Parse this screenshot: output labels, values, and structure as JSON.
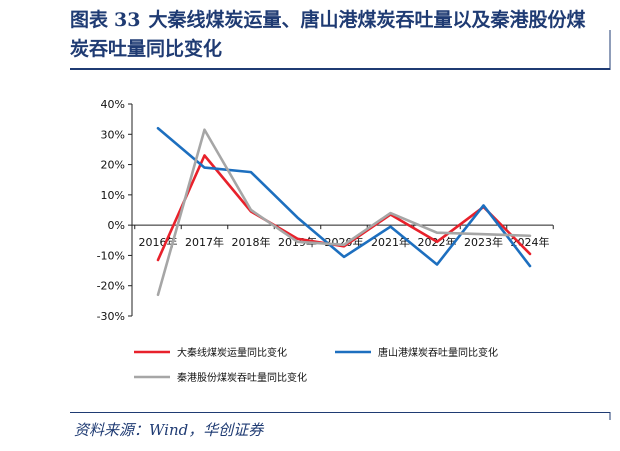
{
  "header": {
    "figure_label": "图表",
    "figure_number": "33",
    "title": "大秦线煤炭运量、唐山港煤炭吞吐量以及秦港股份煤炭吞吐量同比变化"
  },
  "source": "资料来源：Wind，华创证券",
  "chart_data": {
    "type": "line",
    "categories": [
      "2016年",
      "2017年",
      "2018年",
      "2019年",
      "2020年",
      "2021年",
      "2022年",
      "2023年",
      "2024年"
    ],
    "ylim": [
      -30,
      40
    ],
    "yticks": [
      "40%",
      "30%",
      "20%",
      "10%",
      "0%",
      "-10%",
      "-20%",
      "-30%"
    ],
    "ytick_values": [
      40,
      30,
      20,
      10,
      0,
      -10,
      -20,
      -30
    ],
    "grid": false,
    "legend_position": "bottom",
    "series": [
      {
        "name": "大秦线煤炭运量同比变化",
        "color": "#e8212b",
        "values": [
          -11.5,
          23.0,
          4.5,
          -4.5,
          -7.0,
          3.5,
          -5.5,
          6.0,
          -9.5
        ]
      },
      {
        "name": "唐山港煤炭吞吐量同比变化",
        "color": "#1d6fbf",
        "values": [
          32.0,
          19.0,
          17.5,
          2.5,
          -10.5,
          -0.5,
          -13.0,
          6.5,
          -13.5
        ]
      },
      {
        "name": "秦港股份煤炭吞吐量同比变化",
        "color": "#a6a6a6",
        "values": [
          -23.0,
          31.5,
          5.0,
          -5.5,
          -6.5,
          4.0,
          -2.5,
          -3.0,
          -3.5
        ]
      }
    ]
  }
}
